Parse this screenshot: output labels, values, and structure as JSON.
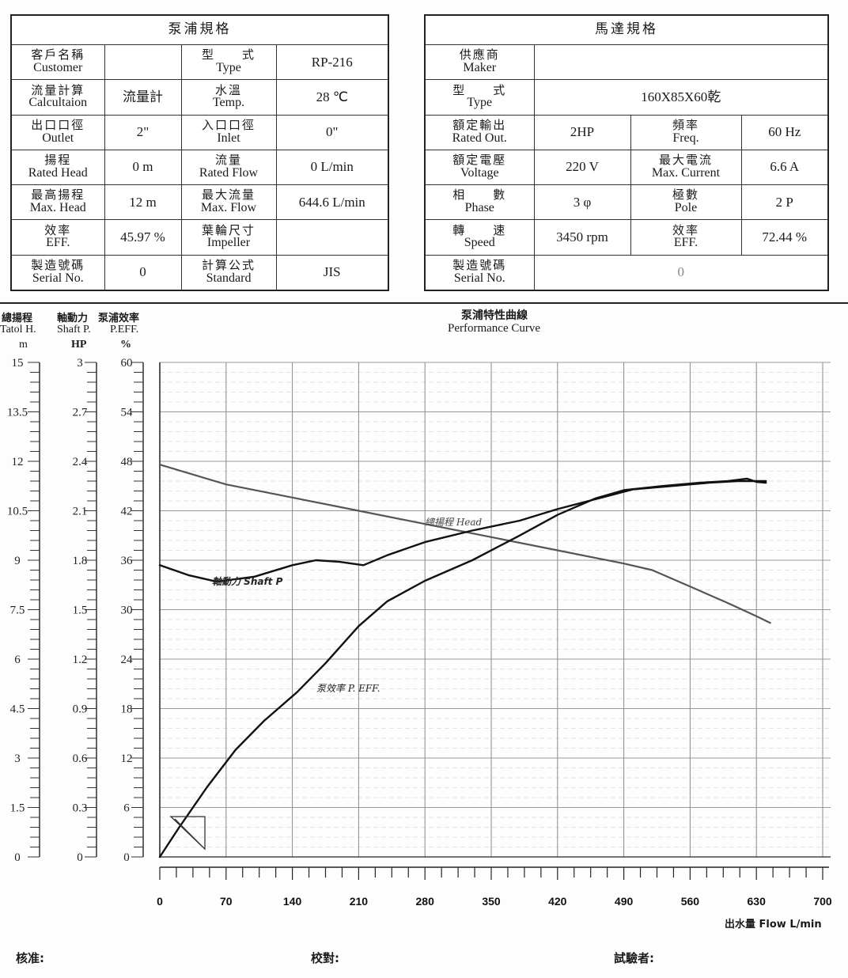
{
  "pump_table": {
    "title": "泵浦規格",
    "rows": [
      {
        "l1_zh": "客戶名稱",
        "l1_en": "Customer",
        "v1": "",
        "l2_zh": "型　　式",
        "l2_en": "Type",
        "v2": "RP-216"
      },
      {
        "l1_zh": "流量計算",
        "l1_en": "Calcultaion",
        "v1": "流量計",
        "l2_zh": "水溫",
        "l2_en": "Temp.",
        "v2": "28 ℃"
      },
      {
        "l1_zh": "出口口徑",
        "l1_en": "Outlet",
        "v1": "2\"",
        "l2_zh": "入口口徑",
        "l2_en": "Inlet",
        "v2": "0\""
      },
      {
        "l1_zh": "揚程",
        "l1_en": "Rated Head",
        "v1": "0 m",
        "l2_zh": "流量",
        "l2_en": "Rated Flow",
        "v2": "0 L/min"
      },
      {
        "l1_zh": "最高揚程",
        "l1_en": "Max. Head",
        "v1": "12 m",
        "l2_zh": "最大流量",
        "l2_en": "Max. Flow",
        "v2": "644.6 L/min"
      },
      {
        "l1_zh": "效率",
        "l1_en": "EFF.",
        "v1": "45.97 %",
        "l2_zh": "葉輪尺寸",
        "l2_en": "Impeller",
        "v2": ""
      },
      {
        "l1_zh": "製造號碼",
        "l1_en": "Serial No.",
        "v1": "0",
        "l2_zh": "計算公式",
        "l2_en": "Standard",
        "v2": "JIS"
      }
    ]
  },
  "motor_table": {
    "title": "馬達規格",
    "maker": {
      "zh": "供應商",
      "en": "Maker",
      "value": ""
    },
    "type": {
      "zh": "型　　式",
      "en": "Type",
      "value": "160X85X60乾"
    },
    "rows": [
      {
        "l1_zh": "額定輸出",
        "l1_en": "Rated Out.",
        "v1": "2HP",
        "l2_zh": "頻率",
        "l2_en": "Freq.",
        "v2": "60 Hz"
      },
      {
        "l1_zh": "額定電壓",
        "l1_en": "Voltage",
        "v1": "220 V",
        "l2_zh": "最大電流",
        "l2_en": "Max. Current",
        "v2": "6.6 A"
      },
      {
        "l1_zh": "相　　數",
        "l1_en": "Phase",
        "v1": "3 φ",
        "l2_zh": "極數",
        "l2_en": "Pole",
        "v2": "2 P"
      },
      {
        "l1_zh": "轉　　速",
        "l1_en": "Speed",
        "v1": "3450 rpm",
        "l2_zh": "效率",
        "l2_en": "EFF.",
        "v2": "72.44 %"
      }
    ],
    "serial": {
      "zh": "製造號碼",
      "en": "Serial No.",
      "value": "0"
    }
  },
  "axis_labels": {
    "head_zh": "總揚程",
    "head_en": "Tatol H.",
    "head_unit": "m",
    "shaft_zh": "軸動力",
    "shaft_en": "Shaft P.",
    "shaft_unit": "HP",
    "eff_zh": "泵浦效率",
    "eff_en": "P.EFF.",
    "eff_unit": "%"
  },
  "chart_data": {
    "type": "line",
    "title": "泵浦特性曲線",
    "subtitle": "Performance Curve",
    "xlabel": "出水量 Flow  L/min",
    "xlim": [
      0,
      700
    ],
    "xticks": [
      0,
      70,
      140,
      210,
      280,
      350,
      420,
      490,
      560,
      630,
      700
    ],
    "axes": [
      {
        "id": "head",
        "ylim": [
          0,
          15
        ],
        "ticks": [
          "0",
          "1.5",
          "3",
          "4.5",
          "6",
          "7.5",
          "9",
          "10.5",
          "12",
          "13.5",
          "15"
        ]
      },
      {
        "id": "shaft",
        "ylim": [
          0,
          3
        ],
        "ticks": [
          "0",
          "0.3",
          "0.6",
          "0.9",
          "1.2",
          "1.5",
          "1.8",
          "2.1",
          "2.4",
          "2.7",
          "3"
        ]
      },
      {
        "id": "eff",
        "ylim": [
          0,
          60
        ],
        "ticks": [
          "0",
          "6",
          "12",
          "18",
          "24",
          "30",
          "36",
          "42",
          "48",
          "54",
          "60"
        ]
      }
    ],
    "series": [
      {
        "name": "總揚程 Head",
        "axis": "head",
        "color": "#555555",
        "x": [
          0,
          70,
          140,
          210,
          280,
          350,
          420,
          490,
          520,
          560,
          600,
          630,
          644.6
        ],
        "y": [
          11.9,
          11.3,
          10.9,
          10.5,
          10.1,
          9.7,
          9.3,
          8.9,
          8.7,
          8.2,
          7.7,
          7.3,
          7.1
        ]
      },
      {
        "name": "軸動力 Shaft P",
        "axis": "shaft",
        "color": "#111111",
        "x": [
          0,
          30,
          60,
          100,
          140,
          165,
          190,
          215,
          240,
          280,
          330,
          380,
          420,
          460,
          500,
          540,
          580,
          610,
          630,
          640
        ],
        "y": [
          1.77,
          1.71,
          1.67,
          1.7,
          1.77,
          1.8,
          1.79,
          1.77,
          1.83,
          1.91,
          1.98,
          2.04,
          2.11,
          2.17,
          2.23,
          2.25,
          2.27,
          2.28,
          2.28,
          2.28
        ]
      },
      {
        "name": "泵效率 P. EFF.",
        "axis": "eff",
        "color": "#111111",
        "x": [
          0,
          20,
          50,
          80,
          110,
          145,
          175,
          210,
          240,
          280,
          330,
          380,
          420,
          460,
          490,
          530,
          570,
          600,
          620,
          630,
          640
        ],
        "y": [
          0,
          3.5,
          8.5,
          13,
          16.5,
          20,
          23.5,
          28,
          31,
          33.5,
          36,
          39,
          41.5,
          43.5,
          44.5,
          45,
          45.4,
          45.6,
          45.9,
          45.5,
          45.4
        ]
      }
    ]
  },
  "signatures": {
    "approve": "核准:",
    "check": "校對:",
    "tester": "試驗者:"
  }
}
